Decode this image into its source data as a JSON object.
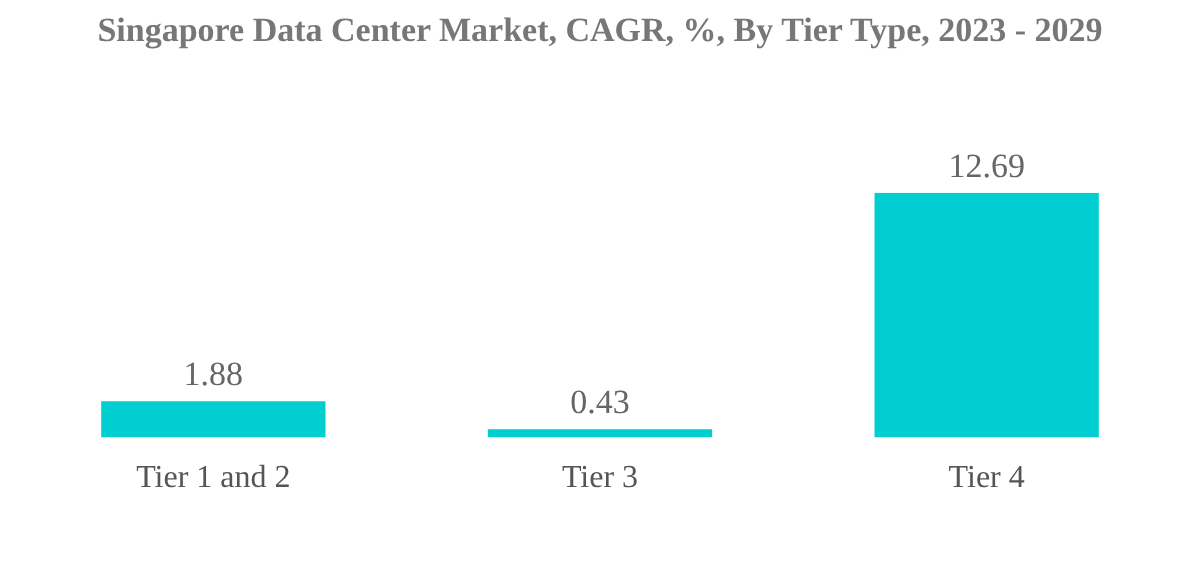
{
  "chart_data": {
    "type": "bar",
    "title": "Singapore Data Center Market, CAGR, %, By Tier Type, 2023 - 2029",
    "categories": [
      "Tier 1 and 2",
      "Tier 3",
      "Tier 4"
    ],
    "values": [
      1.88,
      0.43,
      12.69
    ],
    "color": "#00ced1",
    "tick_labels": "x",
    "data_labels": true,
    "grid": false,
    "legend": false
  }
}
